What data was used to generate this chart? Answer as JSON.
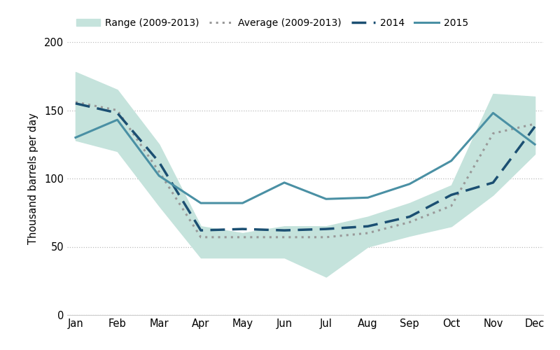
{
  "months": [
    "Jan",
    "Feb",
    "Mar",
    "Apr",
    "May",
    "Jun",
    "Jul",
    "Aug",
    "Sep",
    "Oct",
    "Nov",
    "Dec"
  ],
  "range_min": [
    128,
    120,
    80,
    42,
    42,
    42,
    28,
    50,
    58,
    65,
    88,
    118
  ],
  "range_max": [
    178,
    165,
    125,
    65,
    60,
    65,
    65,
    72,
    82,
    95,
    162,
    160
  ],
  "average": [
    156,
    150,
    105,
    57,
    57,
    57,
    57,
    60,
    68,
    80,
    133,
    140
  ],
  "data_2014": [
    155,
    148,
    112,
    62,
    63,
    62,
    63,
    65,
    72,
    88,
    97,
    138
  ],
  "data_2015": [
    130,
    143,
    102,
    82,
    82,
    97,
    85,
    86,
    96,
    113,
    148,
    125
  ],
  "range_color": "#c5e3dc",
  "average_color": "#999999",
  "color_2014": "#1b4f72",
  "color_2015": "#4a90a4",
  "ylabel": "Thousand barrels per day",
  "ylim": [
    0,
    200
  ],
  "yticks": [
    0,
    50,
    100,
    150,
    200
  ],
  "background_color": "#ffffff",
  "grid_color": "#bbbbbb",
  "legend_labels": [
    "Range (2009-2013)",
    "Average (2009-2013)",
    "2014",
    "2015"
  ]
}
